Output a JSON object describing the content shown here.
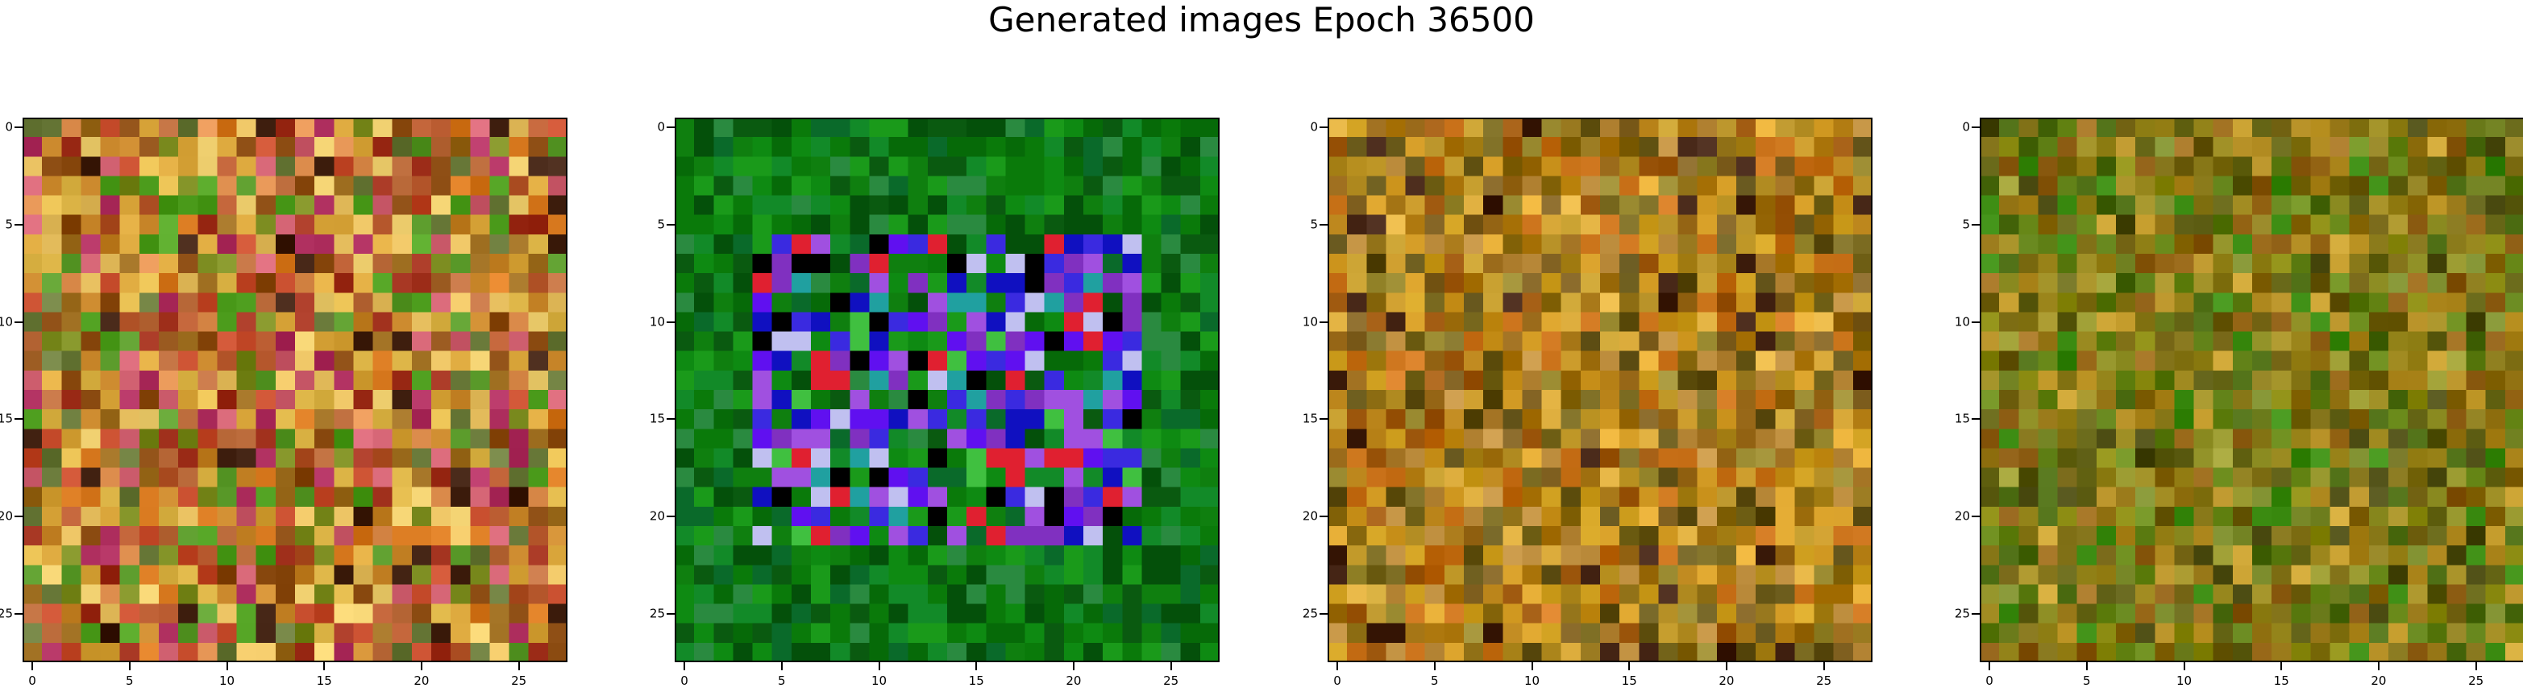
{
  "chart_data": {
    "type": "heatmap",
    "title": "Generated images Epoch 36500",
    "subplots": [
      {
        "palette": [
          "#c8862a",
          "#d9a53a",
          "#b5572c",
          "#e0b84a",
          "#9a6a1c",
          "#c44a2a",
          "#d97a20",
          "#7a8a1e",
          "#b03060",
          "#e8c060",
          "#5a9a2a",
          "#a0301c",
          "#f0d070",
          "#8a4a10",
          "#6a7a3a",
          "#c07040",
          "#e09050",
          "#402010",
          "#50a020",
          "#d06070"
        ],
        "xticks": [
          0,
          5,
          10,
          15,
          20,
          25
        ],
        "yticks": [
          0,
          5,
          10,
          15,
          20,
          25
        ],
        "size": 28
      },
      {
        "palette": [
          "#0a7a0a",
          "#0e8a12",
          "#066a08",
          "#128a28",
          "#04500a",
          "#1a9a1a",
          "#0a6a2a",
          "#2a8a40",
          "#0a5a10",
          "#0f7f0f",
          "#3a2ae0",
          "#6010f0",
          "#1010c0",
          "#a050e0",
          "#000000",
          "#20a0a0",
          "#c0c0f0",
          "#8030c0",
          "#e02030",
          "#40c040"
        ],
        "xticks": [
          0,
          5,
          10,
          15,
          20,
          25
        ],
        "yticks": [
          0,
          5,
          10,
          15,
          20,
          25
        ],
        "size": 28
      },
      {
        "palette": [
          "#b07a10",
          "#c8901a",
          "#9a6a0a",
          "#d0a020",
          "#8a6a10",
          "#a07020",
          "#c06a10",
          "#7a6a20",
          "#e0a830",
          "#b08a20",
          "#5a4a10",
          "#d07820",
          "#9a8a30",
          "#6a5a1a",
          "#c09040",
          "#402010",
          "#a05a10",
          "#e0b040",
          "#806020",
          "#c8a030"
        ],
        "xticks": [
          0,
          5,
          10,
          15,
          20,
          25
        ],
        "yticks": [
          0,
          5,
          10,
          15,
          20,
          25
        ],
        "size": 28
      },
      {
        "palette": [
          "#7a6a10",
          "#8a7a1a",
          "#6a5a0a",
          "#9a8a20",
          "#5a7a10",
          "#8a6a0a",
          "#a08a20",
          "#4a6a10",
          "#7a8a2a",
          "#6a6a1a",
          "#b08a20",
          "#3a8a10",
          "#8a5a10",
          "#9a9a30",
          "#5a5a10",
          "#c8a030",
          "#6a8a1a",
          "#a07020",
          "#4a4a10",
          "#8a8a10"
        ],
        "xticks": [
          0,
          5,
          10,
          15,
          20,
          25
        ],
        "yticks": [
          0,
          5,
          10,
          15,
          20,
          25
        ],
        "size": 28
      }
    ]
  }
}
